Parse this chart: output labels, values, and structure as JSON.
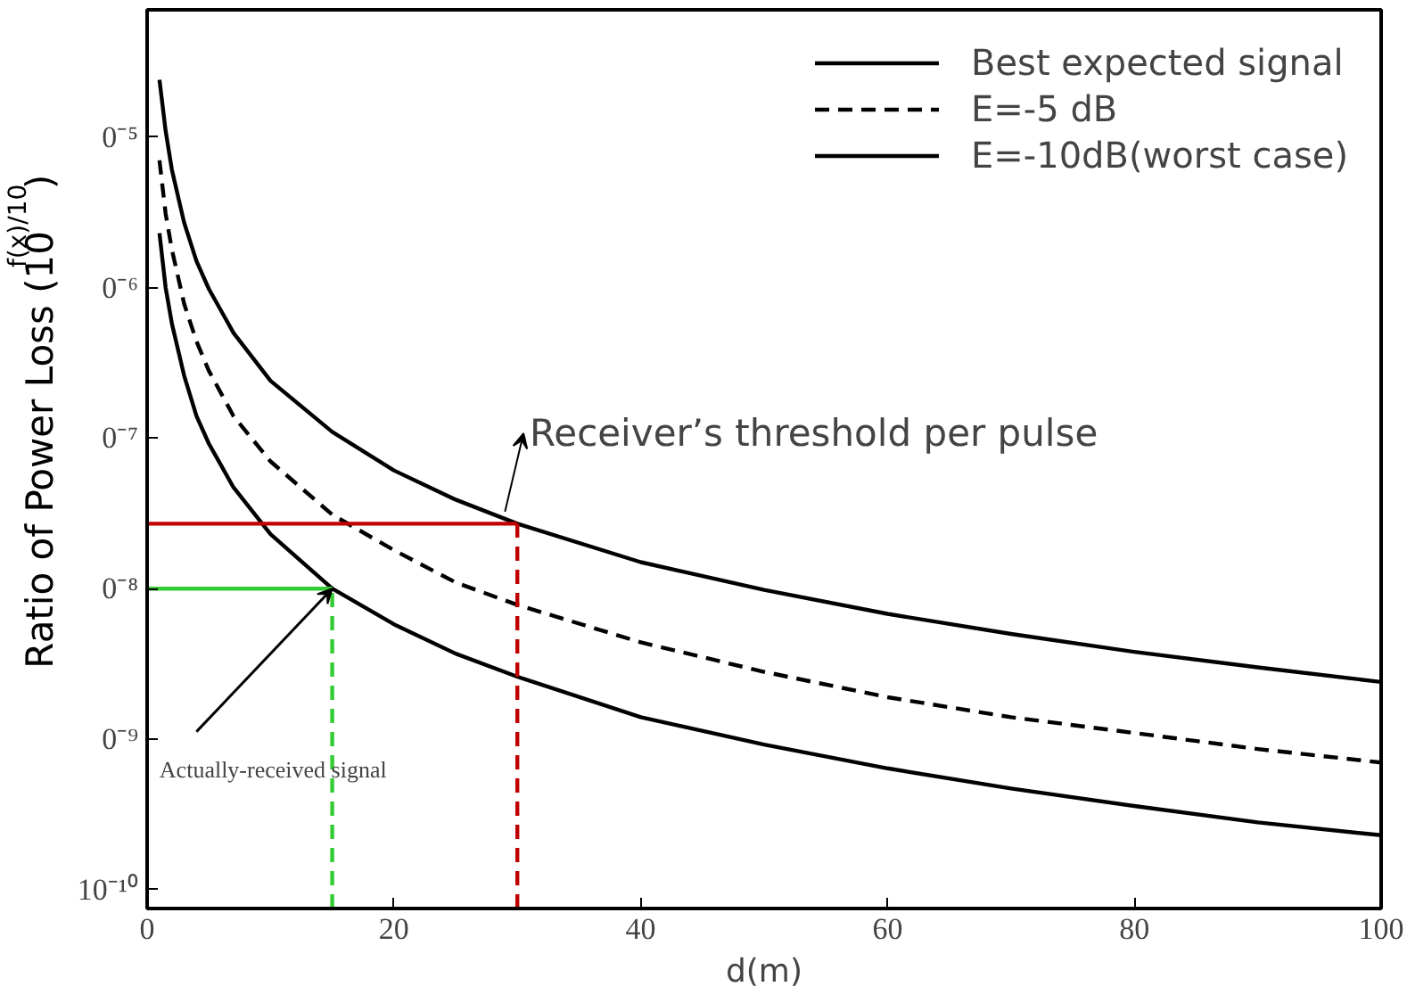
{
  "chart_data": {
    "type": "line",
    "xlabel": "d(m)",
    "ylabel": "Ratio of Power Loss (10$^{f(x)/10}$)",
    "log": "y",
    "xlim": [
      0,
      100
    ],
    "ylim": [
      7.5e-11,
      7e-05
    ],
    "xticks": [
      0,
      20,
      40,
      60,
      80,
      100
    ],
    "yticks": [
      {
        "value": 1e-05,
        "label": "0⁻⁵"
      },
      {
        "value": 1e-06,
        "label": "0⁻⁶"
      },
      {
        "value": 1e-07,
        "label": "0⁻⁷"
      },
      {
        "value": 1e-08,
        "label": "0⁻⁸"
      },
      {
        "value": 1e-09,
        "label": "0⁻⁹"
      },
      {
        "value": 1e-10,
        "label": "10⁻¹⁰"
      }
    ],
    "grid": false,
    "legend": "top right",
    "marker": "none",
    "series": [
      {
        "name": "Best expected signal",
        "color": "#000000",
        "line_style": "solid",
        "x": [
          1,
          1.5,
          2,
          3,
          4,
          5,
          7,
          10,
          15,
          20,
          25,
          30,
          40,
          50,
          60,
          70,
          80,
          90,
          100
        ],
        "values": [
          2.4e-05,
          1.1e-05,
          6.1e-06,
          2.7e-06,
          1.5e-06,
          9.8e-07,
          5e-07,
          2.4e-07,
          1.1e-07,
          6.1e-08,
          3.9e-08,
          2.7e-08,
          1.5e-08,
          9.8e-09,
          6.8e-09,
          5e-09,
          3.8e-09,
          3e-09,
          2.4e-09
        ]
      },
      {
        "name": "E=-5 dB",
        "color": "#000000",
        "line_style": "dashed",
        "x": [
          1,
          1.5,
          2,
          3,
          4,
          5,
          7,
          10,
          15,
          20,
          25,
          30,
          40,
          50,
          60,
          70,
          80,
          90,
          100
        ],
        "values": [
          7e-06,
          3.1e-06,
          1.8e-06,
          7.8e-07,
          4.4e-07,
          2.8e-07,
          1.4e-07,
          7e-08,
          3.1e-08,
          1.8e-08,
          1.1e-08,
          7.8e-09,
          4.4e-09,
          2.8e-09,
          1.9e-09,
          1.4e-09,
          1.1e-09,
          8.6e-10,
          7e-10
        ]
      },
      {
        "name": "E=-10dB(worst case)",
        "color": "#000000",
        "line_style": "solid",
        "x": [
          1,
          1.5,
          2,
          3,
          4,
          5,
          7,
          10,
          15,
          20,
          25,
          30,
          40,
          50,
          60,
          70,
          80,
          90,
          100
        ],
        "values": [
          2.3e-06,
          1e-06,
          5.8e-07,
          2.6e-07,
          1.4e-07,
          9.2e-08,
          4.7e-08,
          2.3e-08,
          1e-08,
          5.8e-09,
          3.7e-09,
          2.6e-09,
          1.4e-09,
          9.2e-10,
          6.4e-10,
          4.7e-10,
          3.6e-10,
          2.8e-10,
          2.3e-10
        ]
      },
      {
        "color": "#c00000",
        "line_style": "solid",
        "x": [
          0,
          30
        ],
        "values": [
          2.7e-08,
          2.7e-08
        ]
      },
      {
        "color": "#c00000",
        "line_style": "dashed",
        "x": [
          30,
          30
        ],
        "values": [
          7.5e-11,
          2.7e-08
        ]
      },
      {
        "color": "#33cc33",
        "line_style": "solid",
        "x": [
          0,
          15
        ],
        "values": [
          1e-08,
          1e-08
        ]
      },
      {
        "color": "#33cc33",
        "line_style": "dashed",
        "x": [
          15,
          15
        ],
        "values": [
          7.5e-11,
          1e-08
        ]
      }
    ],
    "annotations": [
      {
        "text": "Receiver’s threshold per pulse",
        "x": 30,
        "y": 2.7e-08
      },
      {
        "text": "Actually-received signal",
        "x": 15,
        "y": 1e-08
      }
    ]
  }
}
